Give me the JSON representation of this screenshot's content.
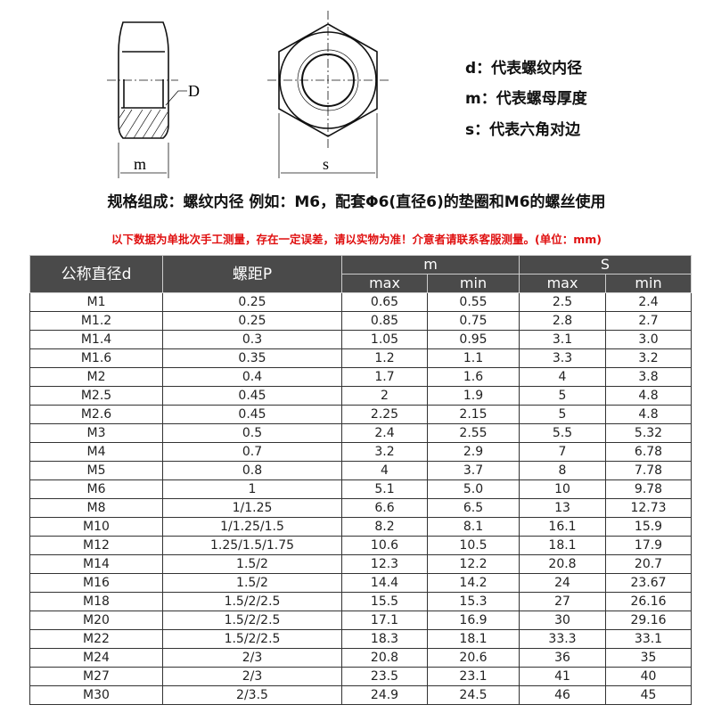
{
  "diagram": {
    "label_d": "D",
    "label_m": "m",
    "label_s": "s"
  },
  "legend": [
    "d：代表螺纹内径",
    "m：代表螺母厚度",
    "s：代表六角对边"
  ],
  "spec_text": "规格组成：螺纹内径 例如：M6，配套Φ6(直径6)的垫圈和M6的螺丝使用",
  "note_text": "以下数据为单批次手工测量，存在一定误差，请以实物为准！介意者请联系客服测量。(单位：mm)",
  "colors": {
    "header_bg": "#4a4a4a",
    "note": "#e01010"
  },
  "table": {
    "headers": {
      "d": "公称直径d",
      "p": "螺距P",
      "m": "m",
      "s": "S",
      "max": "max",
      "min": "min"
    },
    "rows": [
      [
        "M1",
        "0.25",
        "0.65",
        "0.55",
        "2.5",
        "2.4"
      ],
      [
        "M1.2",
        "0.25",
        "0.85",
        "0.75",
        "2.8",
        "2.7"
      ],
      [
        "M1.4",
        "0.3",
        "1.05",
        "0.95",
        "3.1",
        "3.0"
      ],
      [
        "M1.6",
        "0.35",
        "1.2",
        "1.1",
        "3.3",
        "3.2"
      ],
      [
        "M2",
        "0.4",
        "1.7",
        "1.6",
        "4",
        "3.8"
      ],
      [
        "M2.5",
        "0.45",
        "2",
        "1.9",
        "5",
        "4.8"
      ],
      [
        "M2.6",
        "0.45",
        "2.25",
        "2.15",
        "5",
        "4.8"
      ],
      [
        "M3",
        "0.5",
        "2.4",
        "2.55",
        "5.5",
        "5.32"
      ],
      [
        "M4",
        "0.7",
        "3.2",
        "2.9",
        "7",
        "6.78"
      ],
      [
        "M5",
        "0.8",
        "4",
        "3.7",
        "8",
        "7.78"
      ],
      [
        "M6",
        "1",
        "5.1",
        "5.0",
        "10",
        "9.78"
      ],
      [
        "M8",
        "1/1.25",
        "6.6",
        "6.5",
        "13",
        "12.73"
      ],
      [
        "M10",
        "1/1.25/1.5",
        "8.2",
        "8.1",
        "16.1",
        "15.9"
      ],
      [
        "M12",
        "1.25/1.5/1.75",
        "10.6",
        "10.5",
        "18.1",
        "17.9"
      ],
      [
        "M14",
        "1.5/2",
        "12.3",
        "12.2",
        "20.8",
        "20.7"
      ],
      [
        "M16",
        "1.5/2",
        "14.4",
        "14.2",
        "24",
        "23.67"
      ],
      [
        "M18",
        "1.5/2/2.5",
        "15.5",
        "15.3",
        "27",
        "26.16"
      ],
      [
        "M20",
        "1.5/2/2.5",
        "17.1",
        "16.9",
        "30",
        "29.16"
      ],
      [
        "M22",
        "1.5/2/2.5",
        "18.3",
        "18.1",
        "33.3",
        "33.1"
      ],
      [
        "M24",
        "2/3",
        "20.8",
        "20.6",
        "36",
        "35"
      ],
      [
        "M27",
        "2/3",
        "23.5",
        "23.1",
        "41",
        "40"
      ],
      [
        "M30",
        "2/3.5",
        "24.9",
        "24.5",
        "46",
        "45"
      ]
    ]
  }
}
